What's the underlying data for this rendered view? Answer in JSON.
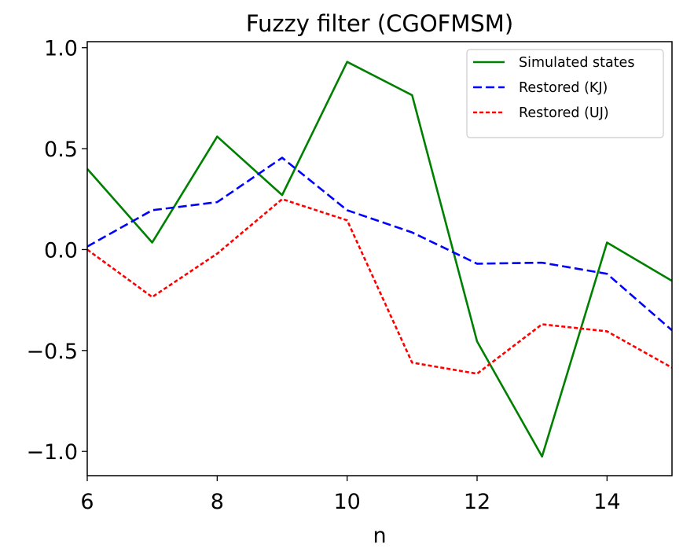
{
  "chart_data": {
    "type": "line",
    "title": "Fuzzy filter (CGOFMSM)",
    "xlabel": "n",
    "ylabel": "",
    "xlim": [
      6,
      15
    ],
    "ylim": [
      -1.12,
      1.03
    ],
    "xticks": [
      6,
      8,
      10,
      12,
      14
    ],
    "xtick_labels": [
      "6",
      "8",
      "10",
      "12",
      "14"
    ],
    "yticks": [
      1.0,
      0.5,
      0.0,
      -0.5,
      -1.0
    ],
    "ytick_labels": [
      "1.0",
      "0.5",
      "0.0",
      "−0.5",
      "−1.0"
    ],
    "grid": false,
    "legend_position": "top-right",
    "x": [
      6,
      7,
      8,
      9,
      10,
      11,
      12,
      13,
      14,
      15
    ],
    "series": [
      {
        "name": "Simulated states",
        "color": "#008000",
        "style": "solid",
        "values": [
          0.4,
          0.035,
          0.56,
          0.27,
          0.93,
          0.765,
          -0.455,
          -1.025,
          0.035,
          -0.155
        ]
      },
      {
        "name": "Restored (KJ)",
        "color": "#0000ff",
        "style": "dashed",
        "values": [
          0.015,
          0.195,
          0.235,
          0.455,
          0.195,
          0.085,
          -0.07,
          -0.065,
          -0.12,
          -0.4
        ]
      },
      {
        "name": "Restored (UJ)",
        "color": "#ff0000",
        "style": "dotted",
        "values": [
          0.0,
          -0.235,
          -0.02,
          0.25,
          0.145,
          -0.56,
          -0.615,
          -0.37,
          -0.405,
          -0.585
        ]
      }
    ]
  }
}
